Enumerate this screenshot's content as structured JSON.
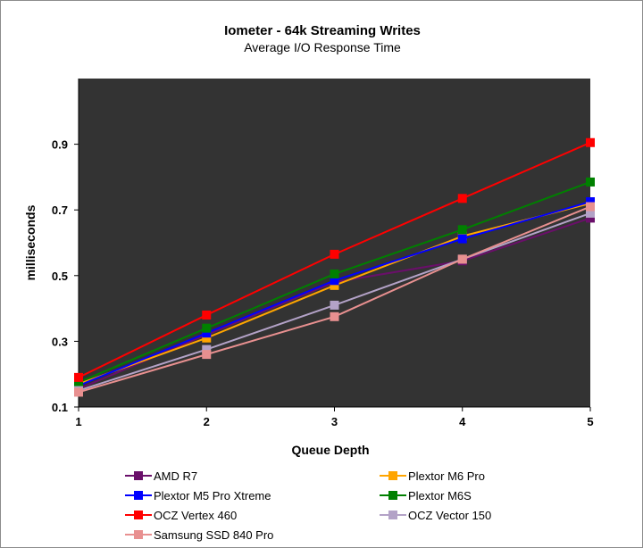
{
  "chart_data": {
    "type": "line",
    "title": "Iometer - 64k Streaming Writes",
    "subtitle": "Average I/O Response Time",
    "xlabel": "Queue Depth",
    "ylabel": "milliseconds",
    "x": [
      1,
      2,
      3,
      4,
      5
    ],
    "xlim": [
      1,
      5
    ],
    "ylim": [
      0.1,
      1.1
    ],
    "yticks": [
      0.1,
      0.3,
      0.5,
      0.7,
      0.9
    ],
    "xticks": [
      1,
      2,
      3,
      4,
      5
    ],
    "grid": false,
    "plot_background": "#333333",
    "legend_position": "bottom",
    "series": [
      {
        "name": "AMD R7",
        "color": "#6a0f6a",
        "values": [
          0.155,
          0.32,
          0.48,
          0.545,
          0.675
        ]
      },
      {
        "name": "Plextor M6 Pro",
        "color": "#ffa500",
        "values": [
          0.17,
          0.31,
          0.47,
          0.62,
          0.72
        ]
      },
      {
        "name": "Plextor M5 Pro Xtreme",
        "color": "#0000ff",
        "values": [
          0.165,
          0.325,
          0.485,
          0.612,
          0.725
        ]
      },
      {
        "name": "Plextor M6S",
        "color": "#008000",
        "values": [
          0.175,
          0.34,
          0.505,
          0.64,
          0.785
        ]
      },
      {
        "name": "OCZ Vertex 460",
        "color": "#ff0000",
        "values": [
          0.19,
          0.38,
          0.565,
          0.735,
          0.905
        ]
      },
      {
        "name": "OCZ Vector 150",
        "color": "#b3a2c7",
        "values": [
          0.15,
          0.275,
          0.41,
          0.55,
          0.69
        ]
      },
      {
        "name": "Samsung SSD 840 Pro",
        "color": "#e89090",
        "values": [
          0.145,
          0.26,
          0.375,
          0.55,
          0.71
        ]
      }
    ]
  }
}
